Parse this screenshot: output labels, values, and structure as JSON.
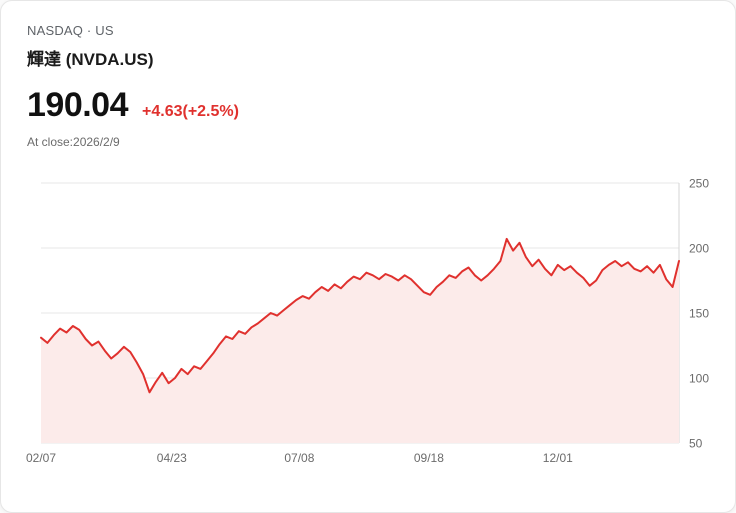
{
  "header": {
    "exchange_line": "NASDAQ · US",
    "title": "輝達 (NVDA.US)"
  },
  "quote": {
    "price": "190.04",
    "change": "+4.63(+2.5%)",
    "as_of": "At close:2026/2/9"
  },
  "colors": {
    "accent_red": "#e0312e",
    "area_fill": "#fcebea",
    "grid": "#e7e7e7",
    "axis_line": "#d6d6d6",
    "text_muted": "#6b6b6b"
  },
  "chart_data": {
    "type": "line",
    "title": "NVDA.US one-year price history",
    "xlabel": "",
    "ylabel": "",
    "ylim": [
      50,
      250
    ],
    "y_ticks": [
      50,
      100,
      150,
      200,
      250
    ],
    "x_tick_labels": [
      "02/07",
      "04/23",
      "07/08",
      "09/18",
      "12/01"
    ],
    "x_tick_positions": [
      0.0,
      0.205,
      0.405,
      0.608,
      0.81
    ],
    "grid": "horizontal",
    "legend": "none",
    "series": [
      {
        "name": "NVDA.US",
        "values": [
          131,
          127,
          133,
          138,
          135,
          140,
          137,
          130,
          125,
          128,
          121,
          115,
          119,
          124,
          120,
          112,
          103,
          89,
          97,
          104,
          96,
          100,
          107,
          103,
          109,
          107,
          113,
          119,
          126,
          132,
          130,
          136,
          134,
          139,
          142,
          146,
          150,
          148,
          152,
          156,
          160,
          163,
          161,
          166,
          170,
          167,
          172,
          169,
          174,
          178,
          176,
          181,
          179,
          176,
          180,
          178,
          175,
          179,
          176,
          171,
          166,
          164,
          170,
          174,
          179,
          177,
          182,
          185,
          179,
          175,
          179,
          184,
          190,
          207,
          198,
          204,
          193,
          186,
          191,
          184,
          179,
          187,
          183,
          186,
          181,
          177,
          171,
          175,
          183,
          187,
          190,
          186,
          189,
          184,
          182,
          186,
          181,
          187,
          176,
          170,
          190
        ]
      }
    ]
  }
}
